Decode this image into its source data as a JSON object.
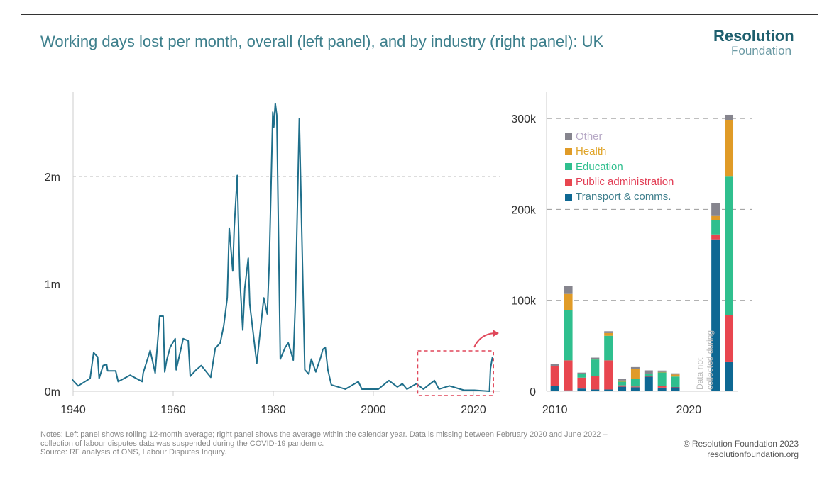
{
  "header": {
    "title": "Working days lost per month, overall (left panel), and by industry (right panel): UK",
    "logo_line1": "Resolution",
    "logo_line2": "Foundation"
  },
  "footer": {
    "notes": [
      "Notes: Left panel shows rolling 12-month average; right panel shows the average within the calendar year. Data is missing between February 2020 and June 2022 –",
      "collection of labour disputes data was suspended during the COVID-19 pandemic.",
      "Source: RF analysis of ONS, Labour Disputes Inquiry."
    ],
    "copyright": "© Resolution Foundation 2023",
    "website": "resolutionfoundation.org"
  },
  "colors": {
    "line": "#1f6f8b",
    "Transport & comms.": "#0e6893",
    "Public administration": "#e8464f",
    "Education": "#2fbf8e",
    "Health": "#e09b27",
    "Other": "#86858e",
    "highlight": "#e0475a"
  },
  "chart_data": [
    {
      "type": "line",
      "title": "",
      "xlim": [
        1940,
        2024
      ],
      "ylim": [
        0,
        2.8
      ],
      "x_ticks": [
        "1940",
        "1960",
        "1980",
        "2000",
        "2020"
      ],
      "x_tick_values": [
        1940,
        1960,
        1980,
        2000,
        2020
      ],
      "y_ticks": [
        "0m",
        "1m",
        "2m"
      ],
      "y_tick_values": [
        0,
        1,
        2
      ],
      "grid": "horizontal dashed",
      "y_unit": "millions of working days",
      "highlight_box": {
        "x": [
          2010,
          2024
        ],
        "label": ""
      },
      "series": [
        {
          "x": [
            1939.8,
            1941,
            1943.4,
            1944.1,
            1944.9,
            1945.2,
            1946,
            1946.7,
            1946.9,
            1948.5,
            1949,
            1951.4,
            1953.8,
            1954,
            1955.4,
            1956.4,
            1957.3,
            1958,
            1958.3,
            1958.7,
            1959.4,
            1960.4,
            1960.6,
            1962,
            1963,
            1963.4,
            1964.6,
            1965.6,
            1967.5,
            1968.4,
            1969.4,
            1970.1,
            1970.8,
            1971.2,
            1971.9,
            1972.2,
            1972.8,
            1973.3,
            1973.9,
            1974.3,
            1975,
            1975.3,
            1976.7,
            1978.1,
            1978.8,
            1979.2,
            1979.9,
            1980.1,
            1980.4,
            1980.7,
            1981.4,
            1982.4,
            1983,
            1984,
            1984.4,
            1985.2,
            1985.7,
            1986.3,
            1987.1,
            1987.6,
            1988.5,
            1989.5,
            1989.9,
            1990.4,
            1990.9,
            1991.6,
            1994.4,
            1997,
            1997.7,
            2001,
            2003.1,
            2004.8,
            2005.8,
            2006.7,
            2008.6,
            2010,
            2012.2,
            2013.1,
            2015.2,
            2018.1,
            2020.2,
            2023.2,
            2023.4,
            2023.8
          ],
          "y": [
            0.11,
            0.05,
            0.12,
            0.36,
            0.32,
            0.12,
            0.24,
            0.25,
            0.19,
            0.19,
            0.09,
            0.15,
            0.09,
            0.17,
            0.38,
            0.17,
            0.7,
            0.7,
            0.18,
            0.29,
            0.41,
            0.49,
            0.2,
            0.49,
            0.47,
            0.14,
            0.2,
            0.24,
            0.13,
            0.4,
            0.45,
            0.61,
            0.87,
            1.52,
            1.12,
            1.53,
            2.01,
            1.07,
            0.57,
            0.96,
            1.24,
            0.81,
            0.26,
            0.87,
            0.72,
            1.2,
            2.6,
            2.46,
            2.68,
            2.57,
            0.3,
            0.41,
            0.45,
            0.29,
            0.81,
            2.54,
            1.47,
            0.2,
            0.16,
            0.3,
            0.18,
            0.32,
            0.39,
            0.41,
            0.2,
            0.06,
            0.02,
            0.09,
            0.02,
            0.02,
            0.1,
            0.04,
            0.07,
            0.02,
            0.07,
            0.02,
            0.1,
            0.02,
            0.05,
            0.01,
            0.01,
            0.0,
            0.21,
            0.32
          ]
        }
      ]
    },
    {
      "type": "bar",
      "stacked": true,
      "title": "",
      "categories": [
        2010,
        2011,
        2012,
        2013,
        2014,
        2015,
        2016,
        2017,
        2018,
        2019,
        2022,
        2023
      ],
      "x_ticks": [
        "2010",
        "2020"
      ],
      "x_tick_values": [
        2010,
        2020
      ],
      "ylim": [
        0,
        310000
      ],
      "y_ticks": [
        "0",
        "100k",
        "200k",
        "300k"
      ],
      "y_tick_values": [
        0,
        100000,
        200000,
        300000
      ],
      "grid": "horizontal dashed",
      "legend": "top-left",
      "legend_order": [
        "Other",
        "Health",
        "Education",
        "Public administration",
        "Transport & comms."
      ],
      "annotation": [
        "Data not",
        "collected during"
      ],
      "series": [
        {
          "name": "Transport & comms.",
          "values": [
            6000,
            1000,
            3000,
            2000,
            2000,
            5000,
            4400,
            16000,
            4000,
            4400,
            167000,
            32000
          ]
        },
        {
          "name": "Public administration",
          "values": [
            22000,
            33000,
            12000,
            15000,
            32000,
            1500,
            800,
            700,
            1700,
            300,
            5400,
            52000
          ]
        },
        {
          "name": "Education",
          "values": [
            0,
            55000,
            4000,
            18000,
            27000,
            4000,
            8300,
            2800,
            15000,
            11500,
            15600,
            152000
          ]
        },
        {
          "name": "Health",
          "values": [
            0,
            18000,
            500,
            500,
            3000,
            1300,
            11200,
            0,
            500,
            2200,
            4700,
            62000
          ]
        },
        {
          "name": "Other",
          "values": [
            2000,
            9000,
            1000,
            1500,
            2000,
            1800,
            1900,
            3500,
            1600,
            1300,
            14300,
            6000
          ]
        }
      ]
    }
  ]
}
